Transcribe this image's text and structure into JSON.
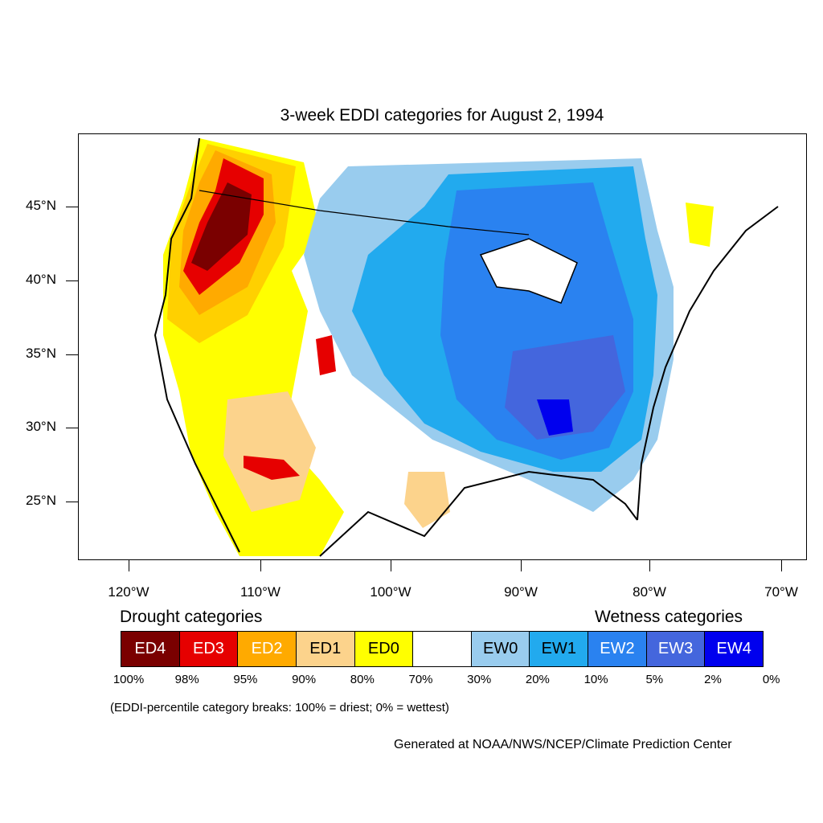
{
  "title": "3-week EDDI categories for August 2, 1994",
  "map": {
    "lat_ticks": [
      "45°N",
      "40°N",
      "35°N",
      "30°N",
      "25°N"
    ],
    "lon_ticks": [
      "120°W",
      "110°W",
      "100°W",
      "90°W",
      "80°W",
      "70°W"
    ]
  },
  "legend": {
    "drought_title": "Drought categories",
    "wetness_title": "Wetness categories",
    "categories": [
      {
        "label": "ED4",
        "color": "#7a0000",
        "text_color": "#ffffff"
      },
      {
        "label": "ED3",
        "color": "#e60000",
        "text_color": "#ffffff"
      },
      {
        "label": "ED2",
        "color": "#ffaa00",
        "text_color": "#ffffff"
      },
      {
        "label": "ED1",
        "color": "#fcd38c",
        "text_color": "#000000"
      },
      {
        "label": "ED0",
        "color": "#ffff00",
        "text_color": "#000000"
      },
      {
        "label": "",
        "color": "#ffffff",
        "text_color": "#000000"
      },
      {
        "label": "EW0",
        "color": "#99ccee",
        "text_color": "#000000"
      },
      {
        "label": "EW1",
        "color": "#22aaee",
        "text_color": "#000000"
      },
      {
        "label": "EW2",
        "color": "#2a82f0",
        "text_color": "#ffffff"
      },
      {
        "label": "EW3",
        "color": "#4466dd",
        "text_color": "#ffffff"
      },
      {
        "label": "EW4",
        "color": "#0000ee",
        "text_color": "#ffffff"
      }
    ],
    "breaks": [
      "100%",
      "98%",
      "95%",
      "90%",
      "80%",
      "70%",
      "30%",
      "20%",
      "10%",
      "5%",
      "2%",
      "0%"
    ],
    "note": "(EDDI-percentile category breaks: 100% = driest; 0% = wettest)"
  },
  "credit": "Generated at NOAA/NWS/NCEP/Climate Prediction Center"
}
